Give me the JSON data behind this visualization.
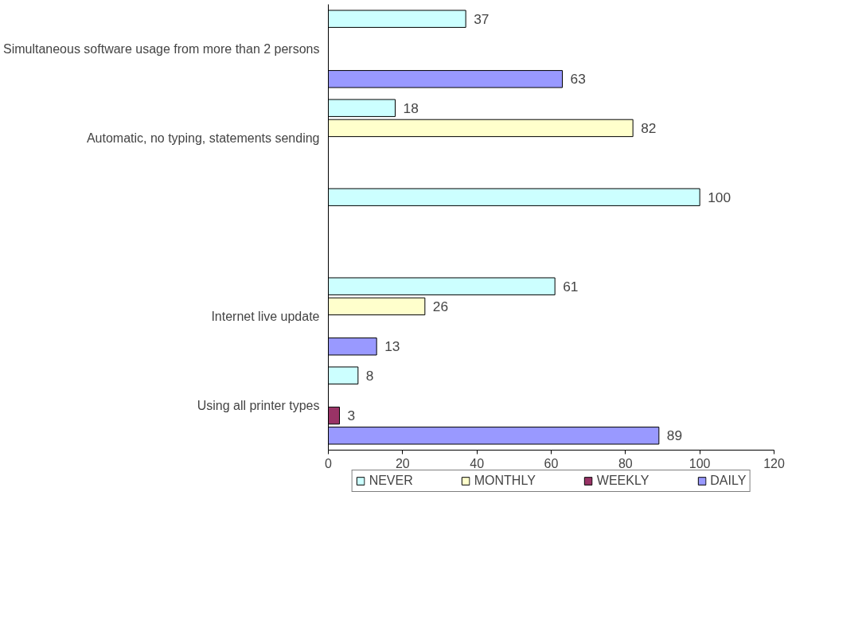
{
  "chart_data": {
    "type": "bar",
    "orientation": "horizontal",
    "categories": [
      "Simultaneous software usage from more than 2 persons",
      "Automatic, no typing, statements sending",
      null,
      "Internet live update",
      "Using all printer types"
    ],
    "series": [
      {
        "name": "NEVER",
        "color": "#ccffff",
        "values": [
          37,
          18,
          100,
          61,
          8
        ]
      },
      {
        "name": "MONTHLY",
        "color": "#ffffcc",
        "values": [
          null,
          82,
          null,
          26,
          null
        ]
      },
      {
        "name": "WEEKLY",
        "color": "#993366",
        "values": [
          null,
          null,
          null,
          null,
          3
        ]
      },
      {
        "name": "DAILY",
        "color": "#9999ff",
        "values": [
          63,
          null,
          null,
          13,
          89
        ]
      }
    ],
    "xlim": [
      0,
      120
    ],
    "xticks": [
      0,
      20,
      40,
      60,
      80,
      100,
      120
    ],
    "data_labels": true,
    "grid": false,
    "legend": "bottom"
  }
}
